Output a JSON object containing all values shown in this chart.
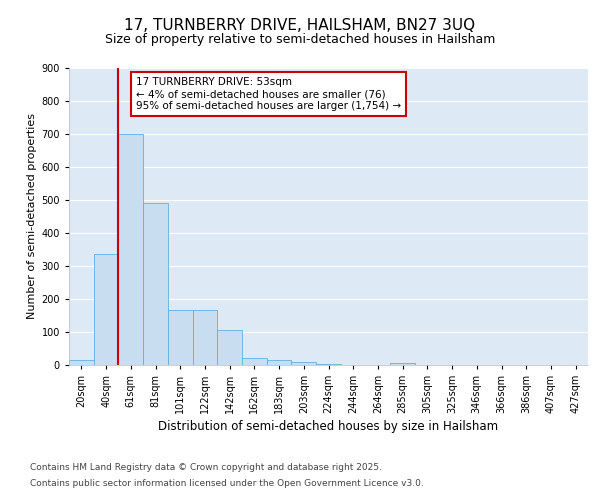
{
  "title1": "17, TURNBERRY DRIVE, HAILSHAM, BN27 3UQ",
  "title2": "Size of property relative to semi-detached houses in Hailsham",
  "xlabel": "Distribution of semi-detached houses by size in Hailsham",
  "ylabel": "Number of semi-detached properties",
  "categories": [
    "20sqm",
    "40sqm",
    "61sqm",
    "81sqm",
    "101sqm",
    "122sqm",
    "142sqm",
    "162sqm",
    "183sqm",
    "203sqm",
    "224sqm",
    "244sqm",
    "264sqm",
    "285sqm",
    "305sqm",
    "325sqm",
    "346sqm",
    "366sqm",
    "386sqm",
    "407sqm",
    "427sqm"
  ],
  "values": [
    15,
    335,
    700,
    490,
    165,
    165,
    105,
    22,
    15,
    8,
    2,
    0,
    0,
    5,
    0,
    0,
    0,
    0,
    0,
    0,
    0
  ],
  "bar_color": "#c8ddf0",
  "bar_edge_color": "#6aadd5",
  "vline_position": 1.5,
  "vline_color": "#cc0000",
  "annotation_text": "17 TURNBERRY DRIVE: 53sqm\n← 4% of semi-detached houses are smaller (76)\n95% of semi-detached houses are larger (1,754) →",
  "footnote_line1": "Contains HM Land Registry data © Crown copyright and database right 2025.",
  "footnote_line2": "Contains public sector information licensed under the Open Government Licence v3.0.",
  "ylim_max": 900,
  "yticks": [
    0,
    100,
    200,
    300,
    400,
    500,
    600,
    700,
    800,
    900
  ],
  "plot_bg_color": "#ddeaf6",
  "grid_color": "#ffffff",
  "title1_fontsize": 11,
  "title2_fontsize": 9,
  "axis_label_fontsize": 8,
  "tick_fontsize": 7,
  "annot_fontsize": 7.5,
  "footnote_fontsize": 6.5
}
